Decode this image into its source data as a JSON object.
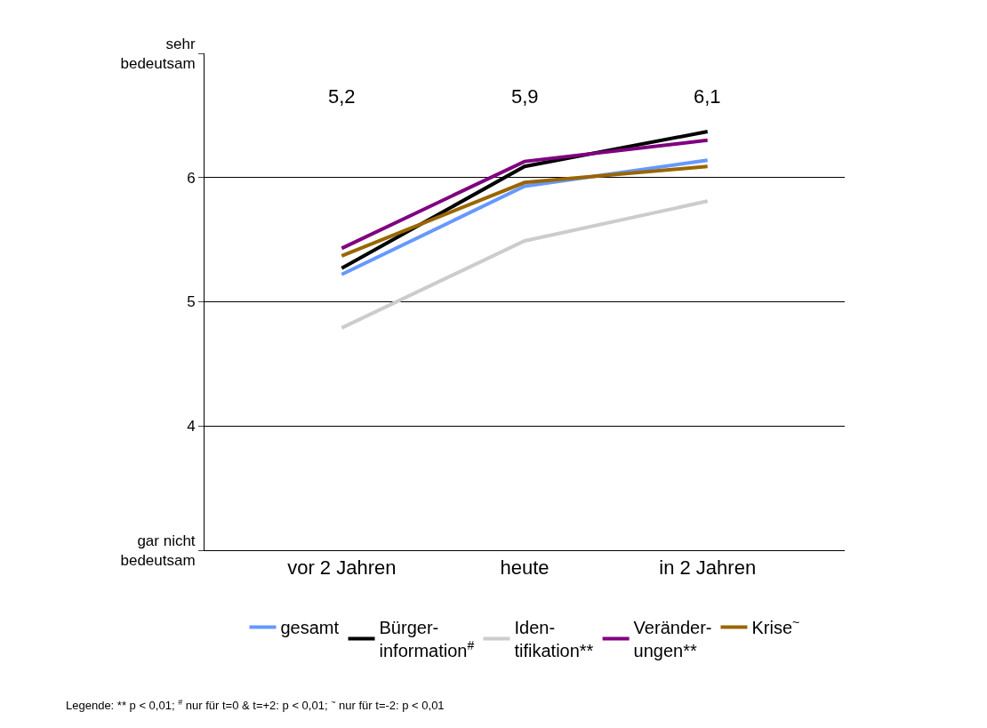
{
  "chart_data": {
    "type": "line",
    "categories": [
      "vor 2 Jahren",
      "heute",
      "in 2 Jahren"
    ],
    "series": [
      {
        "name": "gesamt",
        "color": "#6699ff",
        "values": [
          5.22,
          5.93,
          6.14
        ]
      },
      {
        "name": "Bürger-\ninformation$^{#}$",
        "color": "#000000",
        "values": [
          5.27,
          6.09,
          6.37
        ]
      },
      {
        "name": "Iden-\ntifikation**",
        "color": "#cccccc",
        "values": [
          4.79,
          5.49,
          5.81
        ]
      },
      {
        "name": "Veränder-\nungen**",
        "color": "#800080",
        "values": [
          5.43,
          6.13,
          6.3
        ]
      },
      {
        "name": "Krise$^{~}$",
        "color": "#996600",
        "values": [
          5.37,
          5.96,
          6.09
        ]
      }
    ],
    "ylim": [
      3,
      7
    ],
    "yticks": [
      {
        "value": 3,
        "label": "gar nicht\nbedeutsam"
      },
      4,
      5,
      6,
      {
        "value": 7,
        "label": "sehr\nbedeutsam"
      }
    ],
    "grid": "y",
    "legend": "bottom",
    "marker": "none",
    "line_style": "solid",
    "annotations": [
      "5,2",
      "5,9",
      "6,1",
      "Legende: ** p < 0,01; $^{#}$ nur für t=0 & t=+2: p < 0,01; $^{~}$ nur für t=-2: p < 0,01"
    ]
  }
}
